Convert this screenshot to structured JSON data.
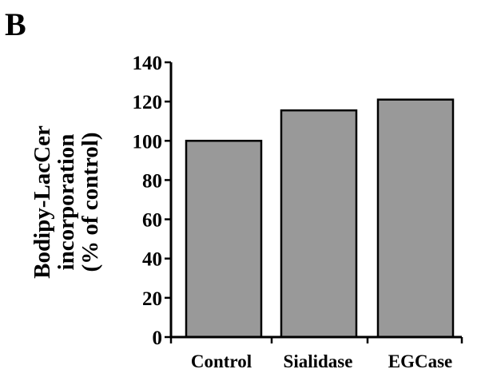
{
  "panel_label": "B",
  "chart_data": {
    "type": "bar",
    "categories": [
      "Control",
      "Sialidase",
      "EGCase"
    ],
    "values": [
      100,
      115.5,
      121
    ],
    "title": "",
    "xlabel": "",
    "ylabel": [
      "Bodipy-LacCer",
      "incorporation",
      "(% of control)"
    ],
    "ylim": [
      0,
      140
    ],
    "yticks": [
      0,
      20,
      40,
      60,
      80,
      100,
      120,
      140
    ],
    "bar_color": "#999999",
    "bar_edge_color": "#000000",
    "grid": false,
    "legend": "none"
  }
}
